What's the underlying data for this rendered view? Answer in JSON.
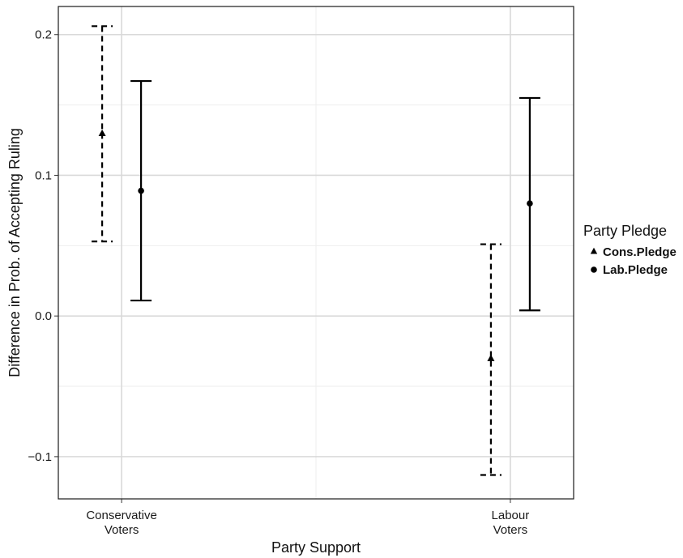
{
  "chart_data": {
    "type": "errorbar",
    "xlabel": "Party Support",
    "ylabel": "Difference in Prob. of Accepting Ruling",
    "ylim": [
      -0.13,
      0.22
    ],
    "yticks": [
      -0.1,
      0.0,
      0.1,
      0.2
    ],
    "ytick_labels": [
      "−0.1",
      "0.0",
      "0.1",
      "0.2"
    ],
    "categories": [
      {
        "line1": "Conservative",
        "line2": "Voters"
      },
      {
        "line1": "Labour",
        "line2": "Voters"
      }
    ],
    "legend": {
      "title": "Party Pledge",
      "placement": "right"
    },
    "series": [
      {
        "name": "Cons.Pledge",
        "marker": "triangle",
        "line_style": "dashed",
        "points": [
          {
            "estimate": 0.13,
            "lower": 0.053,
            "upper": 0.206
          },
          {
            "estimate": -0.03,
            "lower": -0.113,
            "upper": 0.051
          }
        ]
      },
      {
        "name": "Lab.Pledge",
        "marker": "circle",
        "line_style": "solid",
        "points": [
          {
            "estimate": 0.089,
            "lower": 0.011,
            "upper": 0.167
          },
          {
            "estimate": 0.08,
            "lower": 0.004,
            "upper": 0.155
          }
        ]
      }
    ],
    "grid": true,
    "colors": {
      "ink": "#000000",
      "grid_major": "#d9d9d9",
      "grid_minor": "#eeeeee",
      "panel_border": "#1a1a1a"
    }
  }
}
